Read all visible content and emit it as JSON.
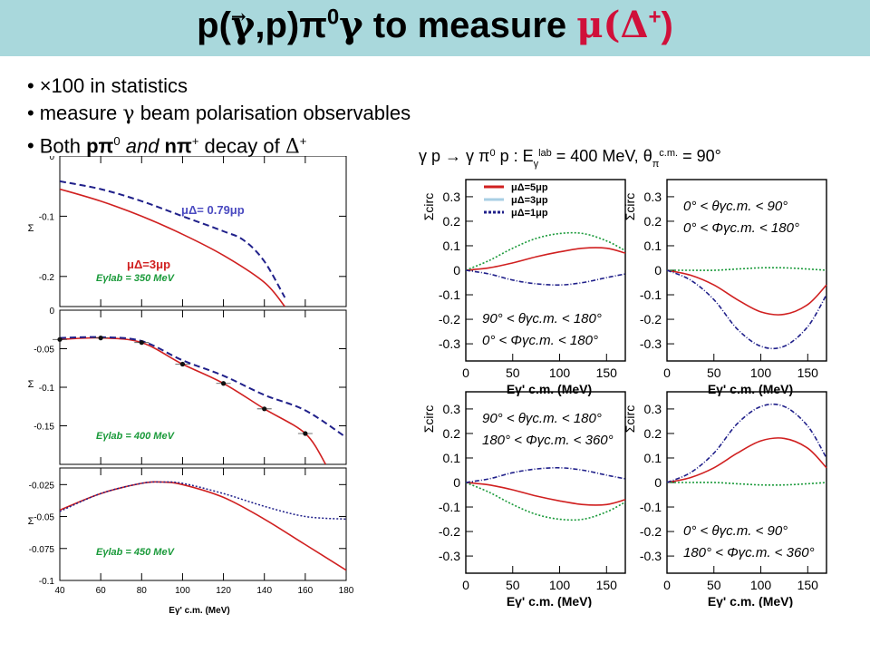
{
  "title": {
    "prefix": "p(",
    "gamma": "γ",
    "mid": ",p)π",
    "pi_sup": "0",
    "gamma2": "γ",
    "to_measure": " to measure ",
    "mu_delta": "μ(Δ",
    "delta_sup": "+",
    "close": ")"
  },
  "bullets": [
    {
      "bullet": "•",
      "text": "×100 in statistics"
    },
    {
      "bullet": "•",
      "text_a": "measure ",
      "greek": "γ",
      "text_b": " beam polarisation observables"
    },
    {
      "bullet": "•",
      "text_a": "Both ",
      "bold_a": "pπ",
      "sup_a": "0",
      "text_b": " and ",
      "bold_b": "nπ",
      "sup_b": "+",
      "text_c": " decay of ",
      "greek": "Δ",
      "sup_c": "+"
    }
  ],
  "left_figure": {
    "legend": {
      "mu_079": "μΔ= 0.79μp",
      "mu_3": "μΔ=3μp"
    },
    "colors": {
      "red": "#d02020",
      "blue": "#20208a",
      "green": "#1a9a3a",
      "frame": "#000000"
    },
    "xlabel": "Eγ' c.m. (MeV)",
    "ylabel": "Σ",
    "xticks": [
      "40",
      "60",
      "80",
      "100",
      "120",
      "140",
      "160",
      "180"
    ],
    "panels": [
      {
        "energy_label": "Eγlab = 350 MeV",
        "yticks": [
          "0",
          "-0.1",
          "-0.2"
        ]
      },
      {
        "energy_label": "Eγlab = 400 MeV",
        "yticks": [
          "0",
          "-0.05",
          "-0.1",
          "-0.15"
        ]
      },
      {
        "energy_label": "Eγlab = 450 MeV",
        "yticks": [
          "-0.025",
          "-0.05",
          "-0.075",
          "-0.1"
        ]
      }
    ]
  },
  "chart_data": [
    {
      "type": "line",
      "title": "",
      "xlabel": "Eγ' c.m. (MeV)",
      "ylabel": "Σ",
      "annotation": "Eγlab = 350 MeV",
      "xlim": [
        40,
        180
      ],
      "ylim": [
        -0.25,
        0
      ],
      "series": [
        {
          "name": "μΔ=3μp",
          "x": [
            40,
            60,
            80,
            100,
            120,
            140,
            150
          ],
          "values": [
            -0.055,
            -0.075,
            -0.1,
            -0.13,
            -0.165,
            -0.21,
            -0.25
          ]
        },
        {
          "name": "μΔ= 0.79μp",
          "x": [
            40,
            60,
            80,
            100,
            120,
            130,
            140,
            150
          ],
          "values": [
            -0.042,
            -0.055,
            -0.075,
            -0.1,
            -0.125,
            -0.14,
            -0.175,
            -0.235
          ]
        }
      ]
    },
    {
      "type": "line",
      "title": "",
      "xlabel": "Eγ' c.m. (MeV)",
      "ylabel": "Σ",
      "annotation": "Eγlab = 400 MeV",
      "xlim": [
        40,
        180
      ],
      "ylim": [
        -0.2,
        0
      ],
      "series": [
        {
          "name": "μΔ=3μp",
          "x": [
            40,
            60,
            80,
            100,
            120,
            140,
            160,
            170
          ],
          "values": [
            -0.038,
            -0.036,
            -0.042,
            -0.07,
            -0.095,
            -0.128,
            -0.16,
            -0.2
          ]
        },
        {
          "name": "μΔ= 0.79μp",
          "x": [
            40,
            60,
            80,
            100,
            120,
            140,
            160,
            180
          ],
          "values": [
            -0.036,
            -0.035,
            -0.04,
            -0.065,
            -0.085,
            -0.11,
            -0.13,
            -0.165
          ]
        },
        {
          "name": "data",
          "x": [
            40,
            60,
            80,
            100,
            120,
            140,
            160
          ],
          "values": [
            -0.038,
            -0.036,
            -0.042,
            -0.07,
            -0.095,
            -0.128,
            -0.16
          ]
        }
      ]
    },
    {
      "type": "line",
      "title": "",
      "xlabel": "Eγ' c.m. (MeV)",
      "ylabel": "Σ",
      "annotation": "Eγlab = 450 MeV",
      "xlim": [
        40,
        180
      ],
      "ylim": [
        -0.1,
        -0.012
      ],
      "series": [
        {
          "name": "μΔ=3μp",
          "x": [
            40,
            60,
            80,
            90,
            100,
            120,
            140,
            160,
            180
          ],
          "values": [
            -0.045,
            -0.032,
            -0.024,
            -0.023,
            -0.025,
            -0.035,
            -0.052,
            -0.072,
            -0.092
          ]
        },
        {
          "name": "μΔ= 0.79μp",
          "x": [
            40,
            60,
            80,
            90,
            100,
            120,
            140,
            160,
            180
          ],
          "values": [
            -0.046,
            -0.032,
            -0.024,
            -0.023,
            -0.024,
            -0.032,
            -0.042,
            -0.05,
            -0.052
          ]
        }
      ]
    },
    {
      "type": "line",
      "title": "γ p → γ π0 p :  Eγlab = 400 MeV, θπc.m. = 90°",
      "xlabel": "Eγ' c.m. (MeV)",
      "ylabel": "Σcirc",
      "annotation": [
        "90° < θγc.m. < 180°",
        "0° < Φγc.m. < 180°"
      ],
      "xlim": [
        0,
        170
      ],
      "ylim": [
        -0.37,
        0.37
      ],
      "series": [
        {
          "name": "μΔ=5μp",
          "x": [
            0,
            25,
            50,
            75,
            100,
            125,
            150,
            170
          ],
          "values": [
            0.0,
            0.01,
            0.03,
            0.055,
            0.075,
            0.09,
            0.09,
            0.07
          ]
        },
        {
          "name": "μΔ=3μp",
          "x": [
            0,
            25,
            50,
            75,
            100,
            125,
            150,
            170
          ],
          "values": [
            0.0,
            0.04,
            0.09,
            0.13,
            0.15,
            0.15,
            0.12,
            0.08
          ]
        },
        {
          "name": "μΔ=1μp",
          "x": [
            0,
            25,
            50,
            75,
            100,
            125,
            150,
            170
          ],
          "values": [
            0.0,
            -0.015,
            -0.04,
            -0.055,
            -0.06,
            -0.05,
            -0.03,
            -0.015
          ]
        }
      ]
    },
    {
      "type": "line",
      "title": "",
      "xlabel": "Eγ' c.m. (MeV)",
      "ylabel": "Σcirc",
      "annotation": [
        "0° < θγc.m. < 90°",
        "0° < Φγc.m. < 180°"
      ],
      "xlim": [
        0,
        170
      ],
      "ylim": [
        -0.37,
        0.37
      ],
      "series": [
        {
          "name": "μΔ=5μp",
          "x": [
            0,
            25,
            50,
            75,
            100,
            125,
            150,
            170
          ],
          "values": [
            0.0,
            -0.02,
            -0.06,
            -0.12,
            -0.17,
            -0.18,
            -0.14,
            -0.06
          ]
        },
        {
          "name": "μΔ=3μp",
          "x": [
            0,
            25,
            50,
            75,
            100,
            125,
            150,
            170
          ],
          "values": [
            0.0,
            0.0,
            0.0,
            0.005,
            0.01,
            0.01,
            0.005,
            0.0
          ]
        },
        {
          "name": "μΔ=1μp",
          "x": [
            0,
            25,
            50,
            75,
            100,
            125,
            150,
            170
          ],
          "values": [
            0.0,
            -0.04,
            -0.12,
            -0.24,
            -0.31,
            -0.31,
            -0.23,
            -0.1
          ]
        }
      ]
    },
    {
      "type": "line",
      "title": "",
      "xlabel": "Eγ' c.m. (MeV)",
      "ylabel": "Σcirc",
      "annotation": [
        "90° < θγc.m. < 180°",
        "180° < Φγc.m. < 360°"
      ],
      "xlim": [
        0,
        170
      ],
      "ylim": [
        -0.37,
        0.37
      ],
      "series": [
        {
          "name": "μΔ=5μp",
          "x": [
            0,
            25,
            50,
            75,
            100,
            125,
            150,
            170
          ],
          "values": [
            0.0,
            -0.01,
            -0.03,
            -0.055,
            -0.075,
            -0.09,
            -0.09,
            -0.07
          ]
        },
        {
          "name": "μΔ=3μp",
          "x": [
            0,
            25,
            50,
            75,
            100,
            125,
            150,
            170
          ],
          "values": [
            0.0,
            -0.04,
            -0.09,
            -0.13,
            -0.15,
            -0.15,
            -0.12,
            -0.08
          ]
        },
        {
          "name": "μΔ=1μp",
          "x": [
            0,
            25,
            50,
            75,
            100,
            125,
            150,
            170
          ],
          "values": [
            0.0,
            0.015,
            0.04,
            0.055,
            0.06,
            0.05,
            0.03,
            0.015
          ]
        }
      ]
    },
    {
      "type": "line",
      "title": "",
      "xlabel": "Eγ' c.m. (MeV)",
      "ylabel": "Σcirc",
      "annotation": [
        "0° < θγc.m. < 90°",
        "180° < Φγc.m. < 360°"
      ],
      "xlim": [
        0,
        170
      ],
      "ylim": [
        -0.37,
        0.37
      ],
      "series": [
        {
          "name": "μΔ=5μp",
          "x": [
            0,
            25,
            50,
            75,
            100,
            125,
            150,
            170
          ],
          "values": [
            0.0,
            0.02,
            0.06,
            0.12,
            0.17,
            0.18,
            0.14,
            0.06
          ]
        },
        {
          "name": "μΔ=3μp",
          "x": [
            0,
            25,
            50,
            75,
            100,
            125,
            150,
            170
          ],
          "values": [
            0.0,
            0.0,
            0.0,
            -0.005,
            -0.01,
            -0.01,
            -0.005,
            0.0
          ]
        },
        {
          "name": "μΔ=1μp",
          "x": [
            0,
            25,
            50,
            75,
            100,
            125,
            150,
            170
          ],
          "values": [
            0.0,
            0.04,
            0.12,
            0.24,
            0.31,
            0.31,
            0.23,
            0.1
          ]
        }
      ]
    }
  ],
  "right_figure": {
    "header": {
      "reaction": "γ p → γ π",
      "pi0": "0",
      "rest": " p :  E",
      "gamma_sub": "γ",
      "lab_sup": "lab",
      "energy": " = 400 MeV, θ",
      "pi_sub": "π",
      "cm_sup": "c.m.",
      "angle": " = 90°"
    },
    "xticks": [
      "0",
      "50",
      "100",
      "150"
    ],
    "yticks": [
      "0.3",
      "0.2",
      "0.1",
      "0",
      "-0.1",
      "-0.2",
      "-0.3"
    ],
    "legend": [
      {
        "label": "μΔ=5μp"
      },
      {
        "label": "μΔ=3μp"
      },
      {
        "label": "μΔ=1μp"
      }
    ],
    "colors": {
      "red": "#d02020",
      "lightblue": "#a8cfe4",
      "blue": "#20208a",
      "green": "#1a9a3a"
    }
  }
}
